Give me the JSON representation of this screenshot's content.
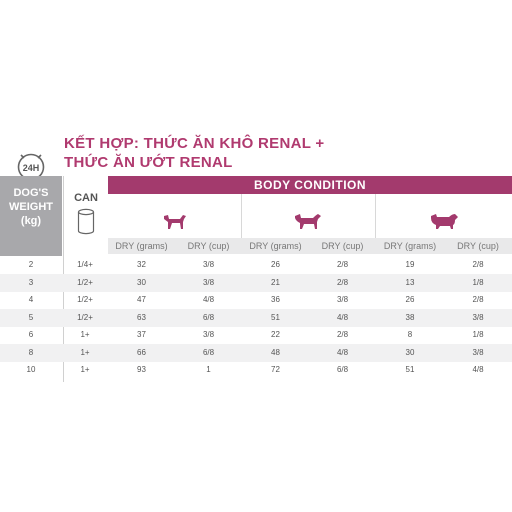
{
  "title": {
    "line1": "KẾT HỢP: THỨC ĂN KHÔ RENAL  +",
    "line2": "THỨC ĂN ƯỚT RENAL"
  },
  "badge": {
    "label": "24H",
    "icon": "clock-icon"
  },
  "headers": {
    "weight": [
      "DOG'S",
      "WEIGHT",
      "(kg)"
    ],
    "can": "CAN",
    "body_condition": "BODY CONDITION",
    "sub": [
      "DRY (grams)",
      "DRY (cup)",
      "DRY (grams)",
      "DRY (cup)",
      "DRY (grams)",
      "DRY (cup)"
    ]
  },
  "body_condition_icons": [
    "thin-dog-icon",
    "ideal-dog-icon",
    "overweight-dog-icon"
  ],
  "rows": [
    {
      "weight": "2",
      "can": "1/4+",
      "c1": [
        "32",
        "3/8"
      ],
      "c2": [
        "26",
        "2/8"
      ],
      "c3": [
        "19",
        "2/8"
      ]
    },
    {
      "weight": "3",
      "can": "1/2+",
      "c1": [
        "30",
        "3/8"
      ],
      "c2": [
        "21",
        "2/8"
      ],
      "c3": [
        "13",
        "1/8"
      ]
    },
    {
      "weight": "4",
      "can": "1/2+",
      "c1": [
        "47",
        "4/8"
      ],
      "c2": [
        "36",
        "3/8"
      ],
      "c3": [
        "26",
        "2/8"
      ]
    },
    {
      "weight": "5",
      "can": "1/2+",
      "c1": [
        "63",
        "6/8"
      ],
      "c2": [
        "51",
        "4/8"
      ],
      "c3": [
        "38",
        "3/8"
      ]
    },
    {
      "weight": "6",
      "can": "1+",
      "c1": [
        "37",
        "3/8"
      ],
      "c2": [
        "22",
        "2/8"
      ],
      "c3": [
        "8",
        "1/8"
      ]
    },
    {
      "weight": "8",
      "can": "1+",
      "c1": [
        "66",
        "6/8"
      ],
      "c2": [
        "48",
        "4/8"
      ],
      "c3": [
        "30",
        "3/8"
      ]
    },
    {
      "weight": "10",
      "can": "1+",
      "c1": [
        "93",
        "1"
      ],
      "c2": [
        "72",
        "6/8"
      ],
      "c3": [
        "51",
        "4/8"
      ]
    }
  ],
  "colors": {
    "accent": "#a33a6d",
    "header_grey": "#a8a8ab",
    "row_alt": "#f1f1f2"
  }
}
